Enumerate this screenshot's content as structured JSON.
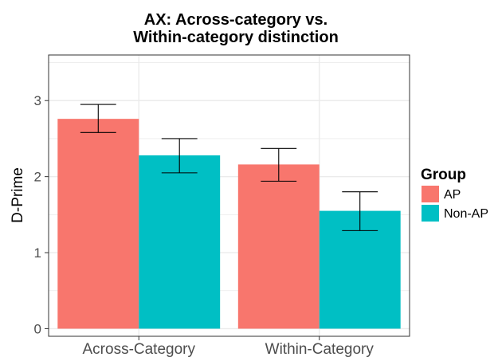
{
  "chart_data": {
    "type": "bar",
    "title": [
      "AX: Across-category vs.",
      "Within-category distinction"
    ],
    "xlabel": "",
    "ylabel": "D-Prime",
    "categories": [
      "Across-Category",
      "Within-Category"
    ],
    "series": [
      {
        "name": "AP",
        "values": [
          2.76,
          2.16
        ],
        "error_low": [
          2.58,
          1.94
        ],
        "error_high": [
          2.95,
          2.37
        ]
      },
      {
        "name": "Non-AP",
        "values": [
          2.28,
          1.55
        ],
        "error_low": [
          2.05,
          1.29
        ],
        "error_high": [
          2.5,
          1.8
        ]
      }
    ],
    "ylim": [
      -0.1,
      3.6
    ],
    "yticks": [
      0,
      1,
      2,
      3
    ],
    "grid": true,
    "legend": {
      "title": "Group",
      "placement": "right"
    },
    "colors": {
      "AP": "#f8766d",
      "Non-AP": "#00bfc4",
      "panel": "#ffffff",
      "grid": "#ebebeb"
    }
  }
}
